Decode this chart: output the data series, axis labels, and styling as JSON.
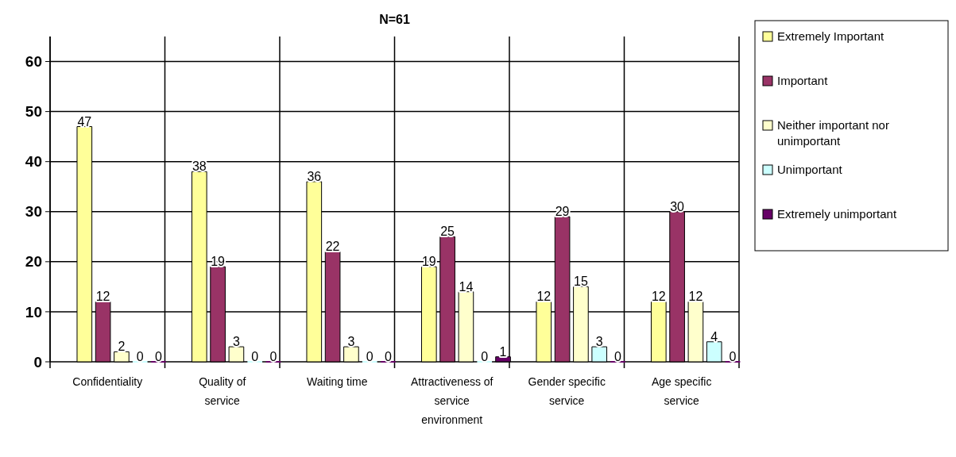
{
  "chart_data": {
    "type": "bar",
    "title": "N=61",
    "categories": [
      "Confidentiality",
      "Quality of service",
      "Waiting time",
      "Attractiveness of service environment",
      "Gender specific service",
      "Age specific service"
    ],
    "series": [
      {
        "name": "Extremely Important",
        "color": "#ffff99",
        "values": [
          47,
          38,
          36,
          19,
          12,
          12
        ]
      },
      {
        "name": "Important",
        "color": "#993366",
        "values": [
          12,
          19,
          22,
          25,
          29,
          30
        ]
      },
      {
        "name": "Neither important nor unimportant",
        "color": "#ffffcc",
        "values": [
          2,
          3,
          3,
          14,
          15,
          12
        ]
      },
      {
        "name": "Unimportant",
        "color": "#ccffff",
        "values": [
          0,
          0,
          0,
          0,
          3,
          4
        ]
      },
      {
        "name": "Extremely unimportant",
        "color": "#660066",
        "values": [
          0,
          0,
          0,
          1,
          0,
          0
        ]
      }
    ],
    "ylim": [
      0,
      65
    ],
    "yticks": [
      0,
      10,
      20,
      30,
      40,
      50,
      60
    ],
    "grid": true,
    "legend": "right",
    "data_labels": true
  }
}
